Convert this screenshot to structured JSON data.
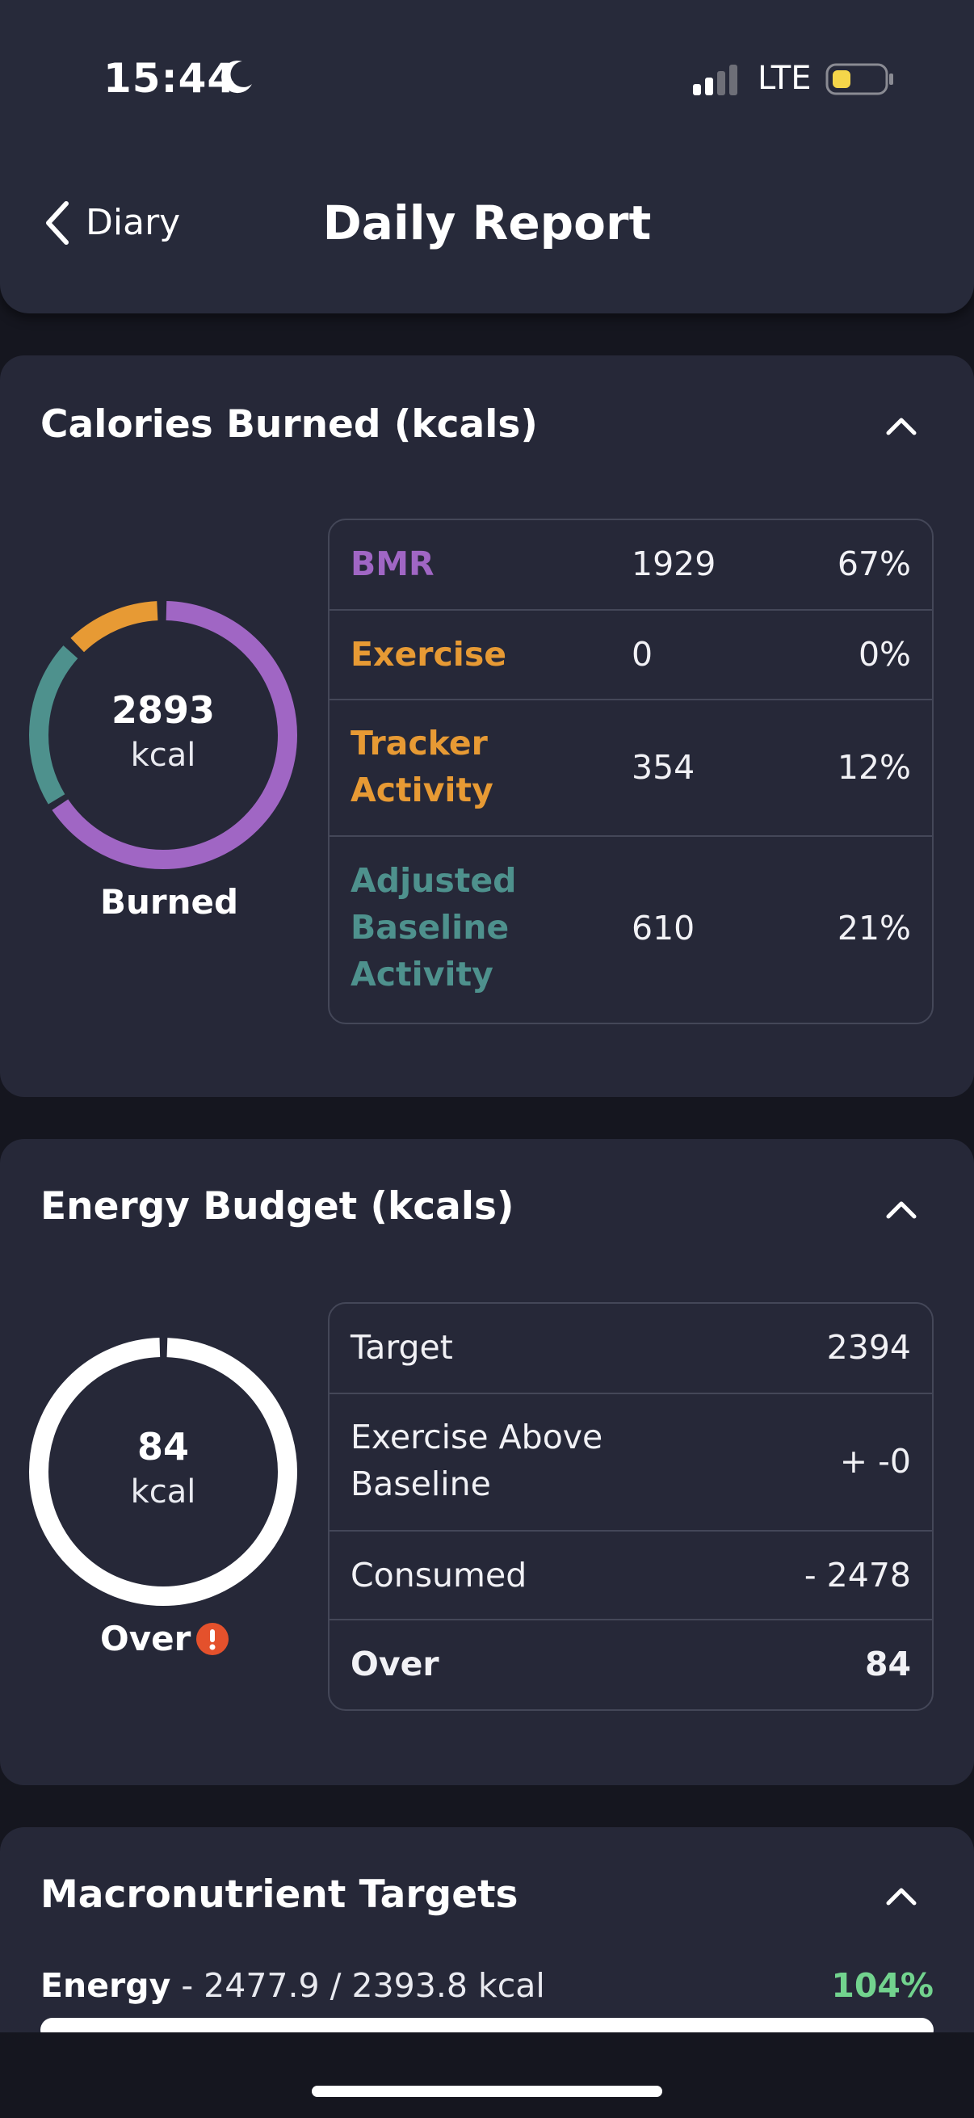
{
  "status_bar": {
    "time": "15:44",
    "network": "LTE"
  },
  "nav": {
    "back_label": "Diary",
    "title": "Daily Report"
  },
  "calories_burned": {
    "title": "Calories Burned (kcals)",
    "ring_value": "2893",
    "ring_unit": "kcal",
    "ring_caption": "Burned",
    "rows": [
      {
        "label": "BMR",
        "value": "1929",
        "percent": "67%",
        "color": "#a066c4"
      },
      {
        "label": "Exercise",
        "value": "0",
        "percent": "0%",
        "color": "#e79a34"
      },
      {
        "label": "Tracker Activity",
        "value": "354",
        "percent": "12%",
        "color": "#e79a34"
      },
      {
        "label": "Adjusted Baseline Activity",
        "value": "610",
        "percent": "21%",
        "color": "#4e918d"
      }
    ]
  },
  "energy_budget": {
    "title": "Energy Budget (kcals)",
    "ring_value": "84",
    "ring_unit": "kcal",
    "ring_caption": "Over",
    "rows": [
      {
        "label": "Target",
        "value": "2394"
      },
      {
        "label": "Exercise Above Baseline",
        "value": "+ -0"
      },
      {
        "label": "Consumed",
        "value": "- 2478"
      },
      {
        "label": "Over",
        "value": "84"
      }
    ]
  },
  "macronutrients": {
    "title": "Macronutrient Targets",
    "energy_label": "Energy",
    "energy_detail": " - 2477.9 / 2393.8 kcal",
    "energy_percent": "104%",
    "percent_color": "#72d38e"
  },
  "colors": {
    "background": "#15161f",
    "card": "#262838",
    "bmr": "#a066c4",
    "exercise": "#e79a34",
    "tracker": "#e79a34",
    "baseline": "#4e918d",
    "warning": "#e4512c"
  }
}
